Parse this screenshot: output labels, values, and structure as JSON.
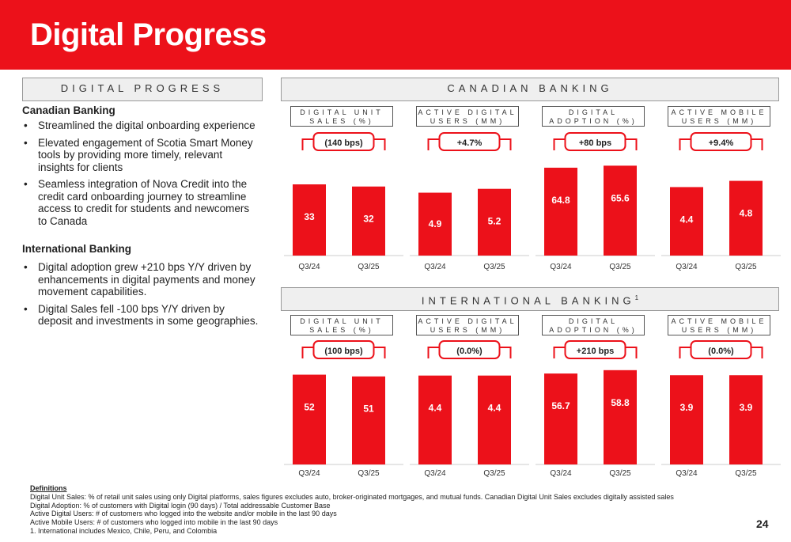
{
  "header": {
    "title": "Digital Progress"
  },
  "left_panel": {
    "section_title": "DIGITAL PROGRESS",
    "canadian": {
      "heading": "Canadian Banking",
      "bullets": [
        "Streamlined the digital onboarding experience",
        "Elevated engagement of Scotia Smart Money tools by providing more timely, relevant insights for clients",
        "Seamless integration of Nova Credit into the credit card onboarding journey to streamline access to credit for students and newcomers to Canada"
      ]
    },
    "international": {
      "heading": "International Banking",
      "bullets": [
        "Digital adoption grew +210 bps Y/Y driven by enhancements in digital payments and money movement capabilities.",
        "Digital Sales fell -100 bps Y/Y driven by deposit and investments in some geographies."
      ]
    }
  },
  "canadian_section": {
    "title": "CANADIAN BANKING"
  },
  "international_section": {
    "title": "INTERNATIONAL BANKING",
    "superscript": "1"
  },
  "colors": {
    "bar": "#ec111a",
    "brand_red": "#ec111a",
    "axis": "#cccccc"
  },
  "chart_data": [
    {
      "type": "bar",
      "group": "CANADIAN BANKING",
      "title_line1": "DIGITAL UNIT",
      "title_line2": "SALES (%)",
      "change": "(140 bps)",
      "categories": [
        "Q3/24",
        "Q3/25"
      ],
      "values": [
        33,
        32
      ],
      "labels": [
        "33",
        "32"
      ],
      "ylim": [
        0,
        44
      ]
    },
    {
      "type": "bar",
      "group": "CANADIAN BANKING",
      "title_line1": "ACTIVE DIGITAL",
      "title_line2": "USERS (MM)",
      "change": "+4.7%",
      "categories": [
        "Q3/24",
        "Q3/25"
      ],
      "values": [
        4.9,
        5.2
      ],
      "labels": [
        "4.9",
        "5.2"
      ],
      "ylim": [
        0,
        7.4
      ]
    },
    {
      "type": "bar",
      "group": "CANADIAN BANKING",
      "title_line1": "DIGITAL",
      "title_line2": "ADOPTION (%)",
      "change": "+80 bps",
      "categories": [
        "Q3/24",
        "Q3/25"
      ],
      "values": [
        64.8,
        65.6
      ],
      "labels": [
        "64.8",
        "65.6"
      ],
      "ylim": [
        30,
        67.6
      ]
    },
    {
      "type": "bar",
      "group": "CANADIAN BANKING",
      "title_line1": "ACTIVE MOBILE",
      "title_line2": "USERS (MM)",
      "change": "+9.4%",
      "categories": [
        "Q3/24",
        "Q3/25"
      ],
      "values": [
        4.4,
        4.8
      ],
      "labels": [
        "4.4",
        "4.8"
      ],
      "ylim": [
        0,
        6.1
      ]
    },
    {
      "type": "bar",
      "group": "INTERNATIONAL BANKING",
      "title_line1": "DIGITAL UNIT",
      "title_line2": "SALES (%)",
      "change": "(100 bps)",
      "categories": [
        "Q3/24",
        "Q3/25"
      ],
      "values": [
        52,
        51
      ],
      "labels": [
        "52",
        "51"
      ],
      "ylim": [
        0,
        55
      ]
    },
    {
      "type": "bar",
      "group": "INTERNATIONAL BANKING",
      "title_line1": "ACTIVE DIGITAL",
      "title_line2": "USERS (MM)",
      "change": "(0.0%)",
      "categories": [
        "Q3/24",
        "Q3/25"
      ],
      "values": [
        4.4,
        4.4
      ],
      "labels": [
        "4.4",
        "4.4"
      ],
      "ylim": [
        0,
        4.7
      ]
    },
    {
      "type": "bar",
      "group": "INTERNATIONAL BANKING",
      "title_line1": "DIGITAL",
      "title_line2": "ADOPTION (%)",
      "change": "+210 bps",
      "categories": [
        "Q3/24",
        "Q3/25"
      ],
      "values": [
        56.7,
        58.8
      ],
      "labels": [
        "56.7",
        "58.8"
      ],
      "ylim": [
        0,
        59.2
      ]
    },
    {
      "type": "bar",
      "group": "INTERNATIONAL BANKING",
      "title_line1": "ACTIVE MOBILE",
      "title_line2": "USERS (MM)",
      "change": "(0.0%)",
      "categories": [
        "Q3/24",
        "Q3/25"
      ],
      "values": [
        3.9,
        3.9
      ],
      "labels": [
        "3.9",
        "3.9"
      ],
      "ylim": [
        0,
        4.15
      ]
    }
  ],
  "definitions": {
    "title": "Definitions",
    "lines": [
      "Digital Unit Sales: % of retail unit sales using only Digital platforms, sales figures excludes auto, broker-originated mortgages, and mutual funds. Canadian Digital Unit Sales excludes digitally assisted sales",
      "Digital Adoption: % of customers with Digital login (90 days) / Total addressable Customer Base",
      "Active Digital Users: # of customers who logged into the website and/or mobile in the last 90 days",
      "Active Mobile Users: # of customers who logged into mobile in the last 90 days",
      "1. International includes Mexico, Chile, Peru, and Colombia"
    ]
  },
  "page_number": "24"
}
